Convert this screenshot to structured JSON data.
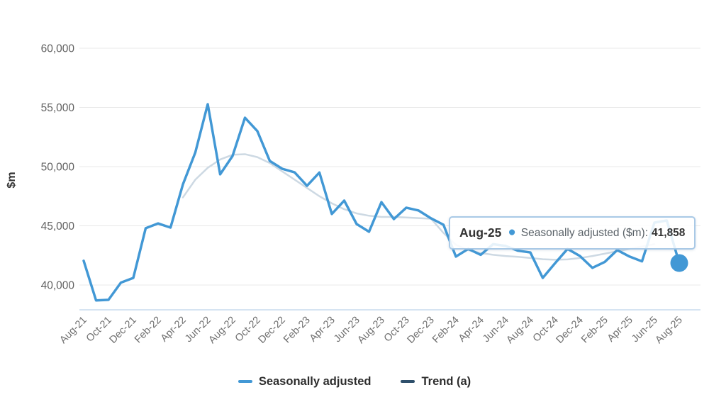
{
  "y_axis": {
    "title": "$m",
    "tick_labels": [
      "60,000",
      "55,000",
      "50,000",
      "45,000",
      "40,000"
    ],
    "tick_values": [
      60000,
      55000,
      50000,
      45000,
      40000
    ]
  },
  "x_axis": {
    "tick_labels": [
      "Aug-21",
      "Oct-21",
      "Dec-21",
      "Feb-22",
      "Apr-22",
      "Jun-22",
      "Aug-22",
      "Oct-22",
      "Dec-22",
      "Feb-23",
      "Apr-23",
      "Jun-23",
      "Aug-23",
      "Oct-23",
      "Dec-23",
      "Feb-24",
      "Apr-24",
      "Jun-24",
      "Aug-24",
      "Oct-24",
      "Dec-24",
      "Feb-25",
      "Apr-25",
      "Jun-25",
      "Aug-25"
    ]
  },
  "tooltip": {
    "period": "Aug-25",
    "series_label": "Seasonally adjusted ($m):",
    "value": "41,858"
  },
  "legend": {
    "items": [
      {
        "label": "Seasonally adjusted",
        "color": "#4298d5"
      },
      {
        "label": "Trend (a)",
        "color": "#2e4f6b"
      }
    ]
  },
  "colors": {
    "grid": "#e8e8e8",
    "axis_line": "#c9dbee",
    "seasonally_adjusted": "#4298d5",
    "trend_plot": "#cdd9e3",
    "tooltip_border": "#a9c9e6"
  },
  "chart_data": {
    "type": "line",
    "title": "",
    "xlabel": "",
    "ylabel": "$m",
    "ylim": [
      37500,
      60500
    ],
    "yticks": [
      40000,
      45000,
      50000,
      55000,
      60000
    ],
    "grid": "horizontal",
    "legend_position": "bottom",
    "x": [
      "Aug-21",
      "Sep-21",
      "Oct-21",
      "Nov-21",
      "Dec-21",
      "Jan-22",
      "Feb-22",
      "Mar-22",
      "Apr-22",
      "May-22",
      "Jun-22",
      "Jul-22",
      "Aug-22",
      "Sep-22",
      "Oct-22",
      "Nov-22",
      "Dec-22",
      "Jan-23",
      "Feb-23",
      "Mar-23",
      "Apr-23",
      "May-23",
      "Jun-23",
      "Jul-23",
      "Aug-23",
      "Sep-23",
      "Oct-23",
      "Nov-23",
      "Dec-23",
      "Jan-24",
      "Feb-24",
      "Mar-24",
      "Apr-24",
      "May-24",
      "Jun-24",
      "Jul-24",
      "Aug-24",
      "Sep-24",
      "Oct-24",
      "Nov-24",
      "Dec-24",
      "Jan-25",
      "Feb-25",
      "Mar-25",
      "Apr-25",
      "May-25",
      "Jun-25",
      "Jul-25",
      "Aug-25"
    ],
    "series": [
      {
        "name": "Seasonally adjusted",
        "color": "#4298d5",
        "start_index": 0,
        "values": [
          42050,
          38700,
          38750,
          40200,
          40600,
          44800,
          45200,
          44850,
          48500,
          51200,
          55270,
          49350,
          50900,
          54130,
          53000,
          50480,
          49820,
          49520,
          48380,
          49500,
          46000,
          47130,
          45150,
          44500,
          47000,
          45570,
          46530,
          46290,
          45630,
          45090,
          42400,
          43050,
          42550,
          43450,
          43300,
          42900,
          42750,
          40600,
          41850,
          43050,
          42450,
          41450,
          41950,
          42950,
          42400,
          42000,
          45270,
          45450,
          41858
        ]
      },
      {
        "name": "Trend (a)",
        "color": "#2e4f6b",
        "plot_color": "#cdd9e3",
        "start_index": 8,
        "values": [
          47400,
          48900,
          49900,
          50600,
          51000,
          51050,
          50800,
          50300,
          49600,
          48900,
          48200,
          47500,
          46900,
          46400,
          46050,
          45850,
          45750,
          45750,
          45700,
          45650,
          45600,
          44400,
          43400,
          42950,
          42700,
          42550,
          42450,
          42380,
          42280,
          42180,
          42130,
          42160,
          42280,
          42450,
          42650,
          42850,
          43050,
          43250,
          43450
        ]
      }
    ],
    "highlight_point": {
      "x": "Aug-25",
      "series": "Seasonally adjusted",
      "value": 41858,
      "value_label": "41,858"
    }
  }
}
